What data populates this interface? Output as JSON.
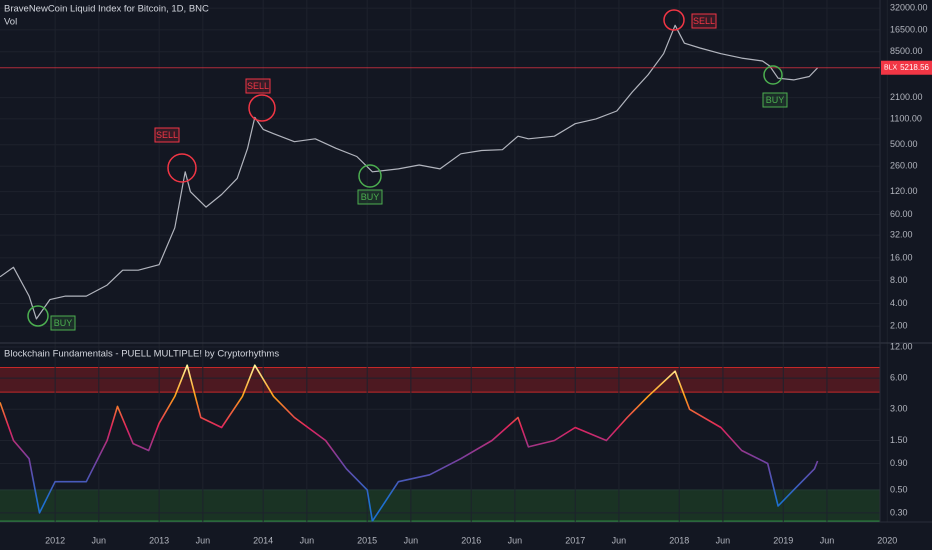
{
  "chart_data": [
    {
      "type": "line",
      "title": "BraveNewCoin Liquid Index for Bitcoin, 1D, BNC",
      "subtitle": "Vol",
      "log_scale": true,
      "grid": true,
      "color": "#b2b5be",
      "x": [
        2011.47,
        2011.6,
        2011.75,
        2011.82,
        2011.95,
        2012.1,
        2012.3,
        2012.5,
        2012.65,
        2012.8,
        2013.0,
        2013.15,
        2013.25,
        2013.3,
        2013.45,
        2013.6,
        2013.75,
        2013.85,
        2013.92,
        2014.0,
        2014.1,
        2014.3,
        2014.5,
        2014.7,
        2014.9,
        2015.05,
        2015.3,
        2015.5,
        2015.7,
        2015.9,
        2016.1,
        2016.3,
        2016.45,
        2016.55,
        2016.8,
        2017.0,
        2017.2,
        2017.4,
        2017.55,
        2017.7,
        2017.85,
        2017.96,
        2018.05,
        2018.2,
        2018.4,
        2018.6,
        2018.8,
        2018.87,
        2018.95,
        2019.1,
        2019.25,
        2019.33
      ],
      "values": [
        9,
        12,
        5,
        2.5,
        4.5,
        5,
        5,
        7,
        11,
        11,
        13,
        40,
        220,
        120,
        75,
        110,
        180,
        450,
        1150,
        800,
        700,
        550,
        600,
        450,
        350,
        220,
        240,
        270,
        240,
        380,
        420,
        430,
        650,
        600,
        650,
        950,
        1100,
        1400,
        2500,
        4200,
        8000,
        19000,
        11000,
        9500,
        8000,
        7000,
        6400,
        5500,
        3800,
        3600,
        4000,
        5200
      ],
      "xlim": [
        2011.47,
        2019.93
      ],
      "ylim": [
        1.2,
        41000
      ],
      "yticks": [
        {
          "value": 32000,
          "label": "32000.00"
        },
        {
          "value": 16500,
          "label": "16500.00"
        },
        {
          "value": 8500,
          "label": "8500.00"
        },
        {
          "value": 2100,
          "label": "2100.00"
        },
        {
          "value": 1100,
          "label": "1100.00"
        },
        {
          "value": 500,
          "label": "500.00"
        },
        {
          "value": 260,
          "label": "260.00"
        },
        {
          "value": 120,
          "label": "120.00"
        },
        {
          "value": 60,
          "label": "60.00"
        },
        {
          "value": 32,
          "label": "32.00"
        },
        {
          "value": 16,
          "label": "16.00"
        },
        {
          "value": 8,
          "label": "8.00"
        },
        {
          "value": 4,
          "label": "4.00"
        },
        {
          "value": 2,
          "label": "2.00"
        }
      ],
      "last_label": "BLX",
      "last_value": 5218.56,
      "last_color": "#f23645",
      "annotations": [
        "SELL",
        "SELL",
        "SELL",
        "BUY",
        "BUY",
        "BUY"
      ]
    },
    {
      "type": "line",
      "title": "Blockchain Fundamentals - PUELL MULTIPLE! by Cryptorhythms",
      "log_scale": true,
      "grid": true,
      "x": [
        2011.47,
        2011.6,
        2011.75,
        2011.85,
        2012.0,
        2012.3,
        2012.5,
        2012.6,
        2012.75,
        2012.9,
        2013.0,
        2013.15,
        2013.27,
        2013.4,
        2013.6,
        2013.8,
        2013.92,
        2014.1,
        2014.3,
        2014.6,
        2014.8,
        2015.0,
        2015.05,
        2015.3,
        2015.6,
        2015.9,
        2016.2,
        2016.45,
        2016.55,
        2016.8,
        2017.0,
        2017.3,
        2017.5,
        2017.7,
        2017.96,
        2018.1,
        2018.4,
        2018.6,
        2018.85,
        2018.95,
        2019.1,
        2019.3,
        2019.33
      ],
      "values": [
        3.5,
        1.5,
        1.0,
        0.3,
        0.6,
        0.6,
        1.5,
        3.2,
        1.4,
        1.2,
        2.2,
        4,
        8,
        2.5,
        2.0,
        4,
        8,
        4,
        2.5,
        1.5,
        0.8,
        0.5,
        0.25,
        0.6,
        0.7,
        1.0,
        1.5,
        2.5,
        1.3,
        1.5,
        2.0,
        1.5,
        2.5,
        4,
        7,
        3,
        2,
        1.2,
        0.9,
        0.35,
        0.5,
        0.8,
        0.95
      ],
      "color_stops": [
        {
          "value": 0.4,
          "color": "#1e6fd0"
        },
        {
          "value": 1.0,
          "color": "#7b3fa0"
        },
        {
          "value": 2.0,
          "color": "#e0245e"
        },
        {
          "value": 4.0,
          "color": "#ff9f1a"
        },
        {
          "value": 8.0,
          "color": "#fff59d"
        }
      ],
      "bands": [
        {
          "from": 4.4,
          "to": 7.6,
          "color": "#5c1a22",
          "border": "#c62828"
        },
        {
          "from": 0.25,
          "to": 0.5,
          "color": "#1d3b26",
          "border": "#2e9e44"
        }
      ],
      "xlim": [
        2011.47,
        2019.93
      ],
      "ylim": [
        0.245,
        13.1
      ],
      "yticks": [
        {
          "value": 12,
          "label": "12.00"
        },
        {
          "value": 6,
          "label": "6.00"
        },
        {
          "value": 3,
          "label": "3.00"
        },
        {
          "value": 1.5,
          "label": "1.50"
        },
        {
          "value": 0.9,
          "label": "0.90"
        },
        {
          "value": 0.5,
          "label": "0.50"
        },
        {
          "value": 0.3,
          "label": "0.30"
        }
      ],
      "xticks": [
        2012,
        {
          "value": 2012.42,
          "label": "Jun"
        },
        2013,
        {
          "value": 2013.42,
          "label": "Jun"
        },
        2014,
        {
          "value": 2014.42,
          "label": "Jun"
        },
        2015,
        {
          "value": 2015.42,
          "label": "Jun"
        },
        2016,
        {
          "value": 2016.42,
          "label": "Jun"
        },
        2017,
        {
          "value": 2017.42,
          "label": "Jun"
        },
        2018,
        {
          "value": 2018.42,
          "label": "Jun"
        },
        2019,
        {
          "value": 2019.42,
          "label": "Jun"
        },
        2020
      ]
    }
  ]
}
